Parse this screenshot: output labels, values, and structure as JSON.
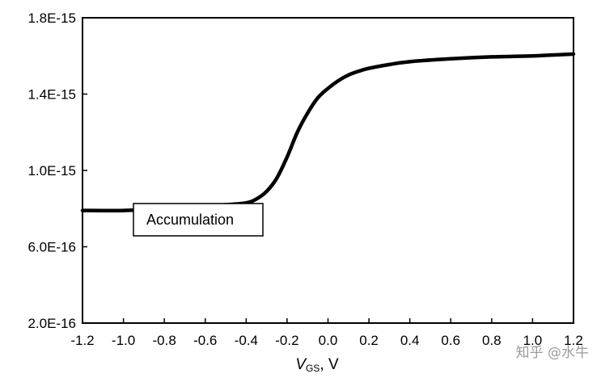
{
  "chart_data": {
    "type": "line",
    "title": "",
    "xlabel": {
      "main": "V",
      "sub": "GS",
      "unit": ", V"
    },
    "ylabel": "",
    "xlim": [
      -1.2,
      1.2
    ],
    "ylim": [
      2e-16,
      1.8e-15
    ],
    "x_ticks": [
      -1.2,
      -1.0,
      -0.8,
      -0.6,
      -0.4,
      -0.2,
      0.0,
      0.2,
      0.4,
      0.6,
      0.8,
      1.0,
      1.2
    ],
    "x_tick_labels": [
      "-1.2",
      "-1.0",
      "-0.8",
      "-0.6",
      "-0.4",
      "-0.2",
      "0.0",
      "0.2",
      "0.4",
      "0.6",
      "0.8",
      "1.0",
      "1.2"
    ],
    "y_ticks": [
      2e-16,
      6e-16,
      1e-15,
      1.4e-15,
      1.8e-15
    ],
    "y_tick_labels": [
      "2.0E-16",
      "6.0E-16",
      "1.0E-15",
      "1.4E-15",
      "1.8E-15"
    ],
    "grid": false,
    "series": [
      {
        "color": "#000000",
        "x": [
          -1.2,
          -1.0,
          -0.8,
          -0.6,
          -0.5,
          -0.4,
          -0.35,
          -0.3,
          -0.25,
          -0.2,
          -0.15,
          -0.1,
          -0.05,
          0.0,
          0.05,
          0.1,
          0.15,
          0.2,
          0.3,
          0.4,
          0.6,
          0.8,
          1.0,
          1.2
        ],
        "y": [
          7.9e-16,
          7.9e-16,
          8e-16,
          8.1e-16,
          8.2e-16,
          8.3e-16,
          8.5e-16,
          8.9e-16,
          9.6e-16,
          1.07e-15,
          1.2e-15,
          1.3e-15,
          1.38e-15,
          1.43e-15,
          1.47e-15,
          1.5e-15,
          1.52e-15,
          1.535e-15,
          1.555e-15,
          1.57e-15,
          1.585e-15,
          1.595e-15,
          1.6e-15,
          1.61e-15
        ]
      }
    ],
    "annotations": [
      {
        "text": "Accumulation"
      }
    ]
  },
  "watermark": "知乎 @水牛"
}
